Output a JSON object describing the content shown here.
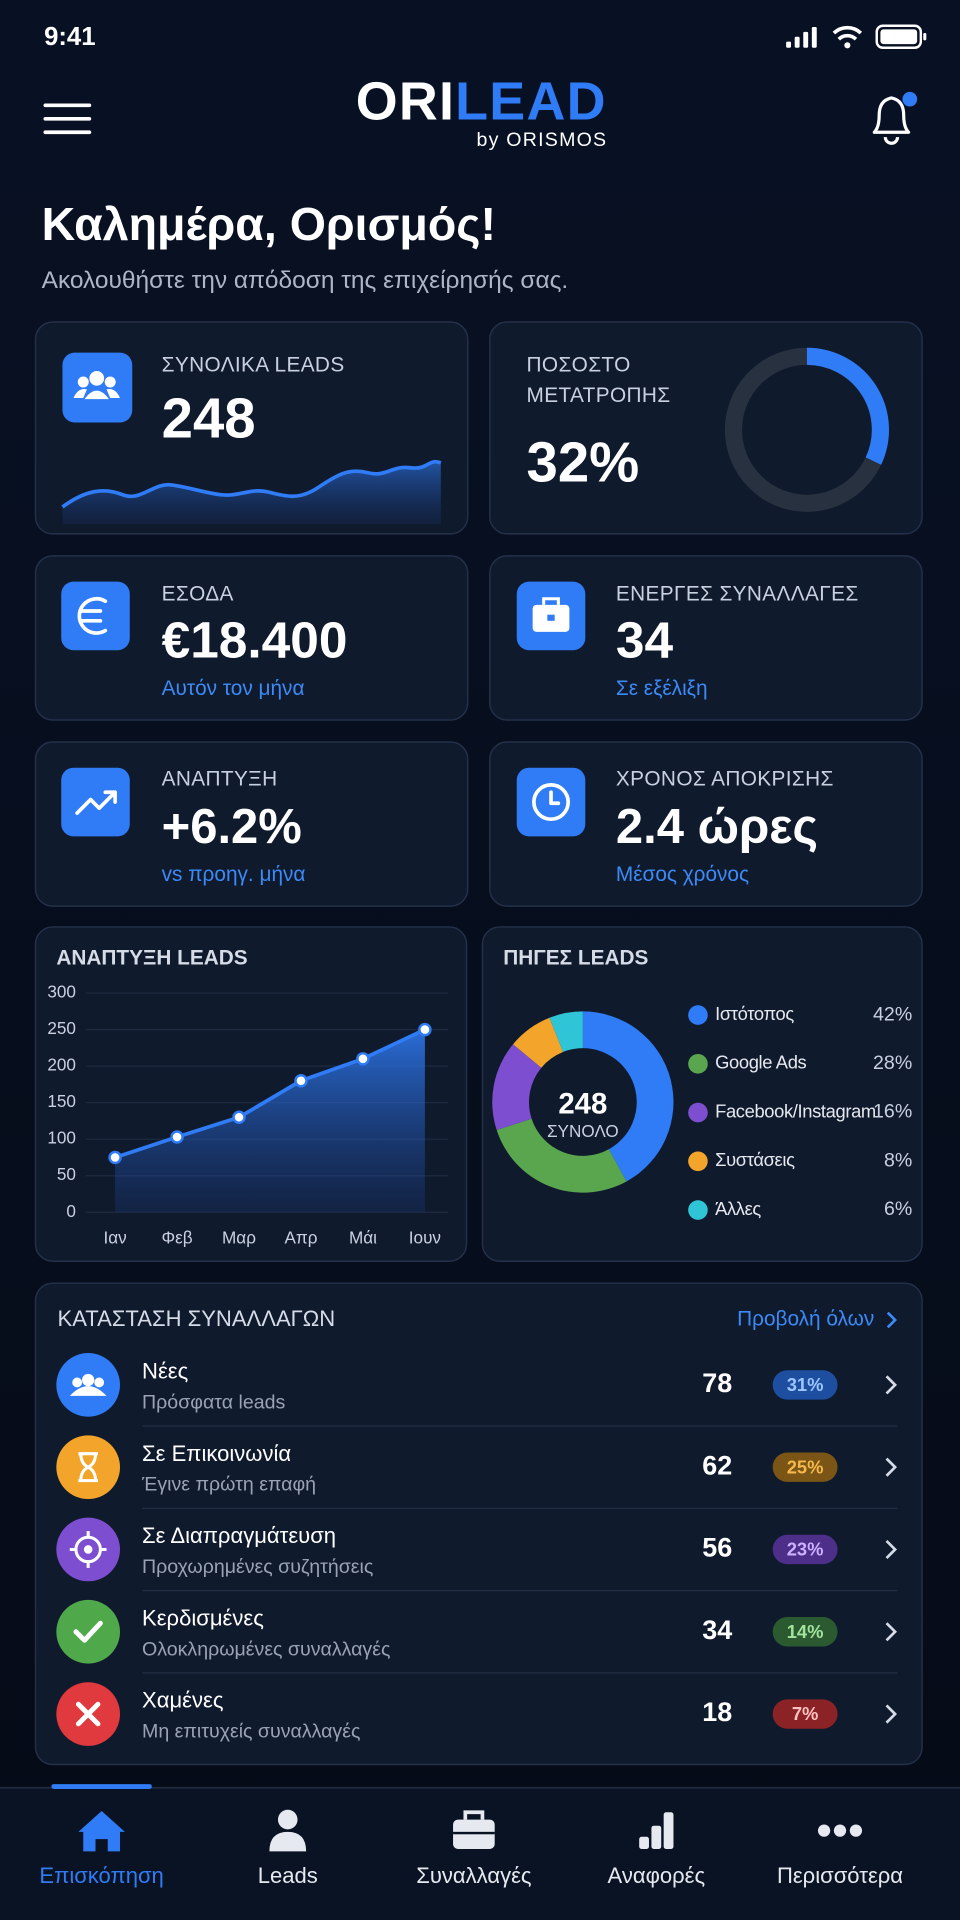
{
  "status_bar": {
    "time": "9:41"
  },
  "header": {
    "logo_primary": "ORI",
    "logo_accent": "LEAD",
    "logo_sub": "by ORISMOS"
  },
  "greeting": {
    "title": "Καλημέρα, Ορισμός!",
    "subtitle": "Ακολουθήστε την απόδοση της επιχείρησής σας."
  },
  "kpis": {
    "total_leads": {
      "label": "ΣΥΝΟΛΙΚΑ LEADS",
      "value": "248"
    },
    "conversion": {
      "label_lines": [
        "ΠΟΣΟΣΤΟ",
        "ΜΕΤΑΤΡΟΠΗΣ"
      ],
      "value": 32,
      "value_label": "32%"
    },
    "revenue": {
      "label": "ΕΣΟΔΑ",
      "value": "€18.400",
      "note": "Αυτόν τον μήνα"
    },
    "active_deals": {
      "label": "ΕΝΕΡΓΕΣ ΣΥΝΑΛΛΑΓΕΣ",
      "value": "34",
      "note": "Σε εξέλιξη"
    },
    "growth": {
      "label": "ΑΝΑΠΤΥΞΗ",
      "value": "+6.2%",
      "note": "vs προηγ. μήνα"
    },
    "response_time": {
      "label": "ΧΡΟΝΟΣ ΑΠΟΚΡΙΣΗΣ",
      "value": "2.4 ώρες",
      "note": "Μέσος χρόνος"
    }
  },
  "chart_data": [
    {
      "type": "line",
      "title": "ΑΝΑΠΤΥΞΗ LEADS",
      "categories": [
        "Ιαν",
        "Φεβ",
        "Μαρ",
        "Απρ",
        "Μάι",
        "Ιουν"
      ],
      "values": [
        75,
        103,
        130,
        180,
        210,
        250
      ],
      "ylim": [
        0,
        300
      ],
      "yticks": [
        0,
        50,
        100,
        150,
        200,
        250,
        300
      ],
      "grid": true,
      "color": "#2f7cf6"
    },
    {
      "type": "pie",
      "title": "ΠΗΓΕΣ LEADS",
      "center_value": "248",
      "center_label": "ΣΥΝΟΛΟ",
      "categories": [
        "Ιστότοπος",
        "Google Ads",
        "Facebook/Instagram",
        "Συστάσεις",
        "Άλλες"
      ],
      "values": [
        42,
        28,
        16,
        8,
        6
      ],
      "value_labels": [
        "42%",
        "28%",
        "16%",
        "8%",
        "6%"
      ],
      "colors": [
        "#2f7cf6",
        "#5aa64e",
        "#7d4fd0",
        "#f2a52a",
        "#2fc4d6"
      ]
    }
  ],
  "deals": {
    "title": "ΚΑΤΑΣΤΑΣΗ ΣΥΝΑΛΛΑΓΩΝ",
    "view_all": "Προβολή όλων",
    "rows": [
      {
        "name": "Νέες",
        "subtitle": "Πρόσφατα leads",
        "count": "78",
        "share": "31%",
        "color": "#2f7cf6"
      },
      {
        "name": "Σε Επικοινωνία",
        "subtitle": "Έγινε πρώτη επαφή",
        "count": "62",
        "share": "25%",
        "color": "#f2a52a"
      },
      {
        "name": "Σε Διαπραγμάτευση",
        "subtitle": "Προχωρημένες συζητήσεις",
        "count": "56",
        "share": "23%",
        "color": "#7d4fd0"
      },
      {
        "name": "Κερδισμένες",
        "subtitle": "Ολοκληρωμένες συναλλαγές",
        "count": "34",
        "share": "14%",
        "color": "#4fa84a"
      },
      {
        "name": "Χαμένες",
        "subtitle": "Μη επιτυχείς συναλλαγές",
        "count": "18",
        "share": "7%",
        "color": "#e0393e"
      }
    ]
  },
  "nav": {
    "items": [
      "Επισκόπηση",
      "Leads",
      "Συναλλαγές",
      "Αναφορές",
      "Περισσότερα"
    ],
    "active": 0
  }
}
